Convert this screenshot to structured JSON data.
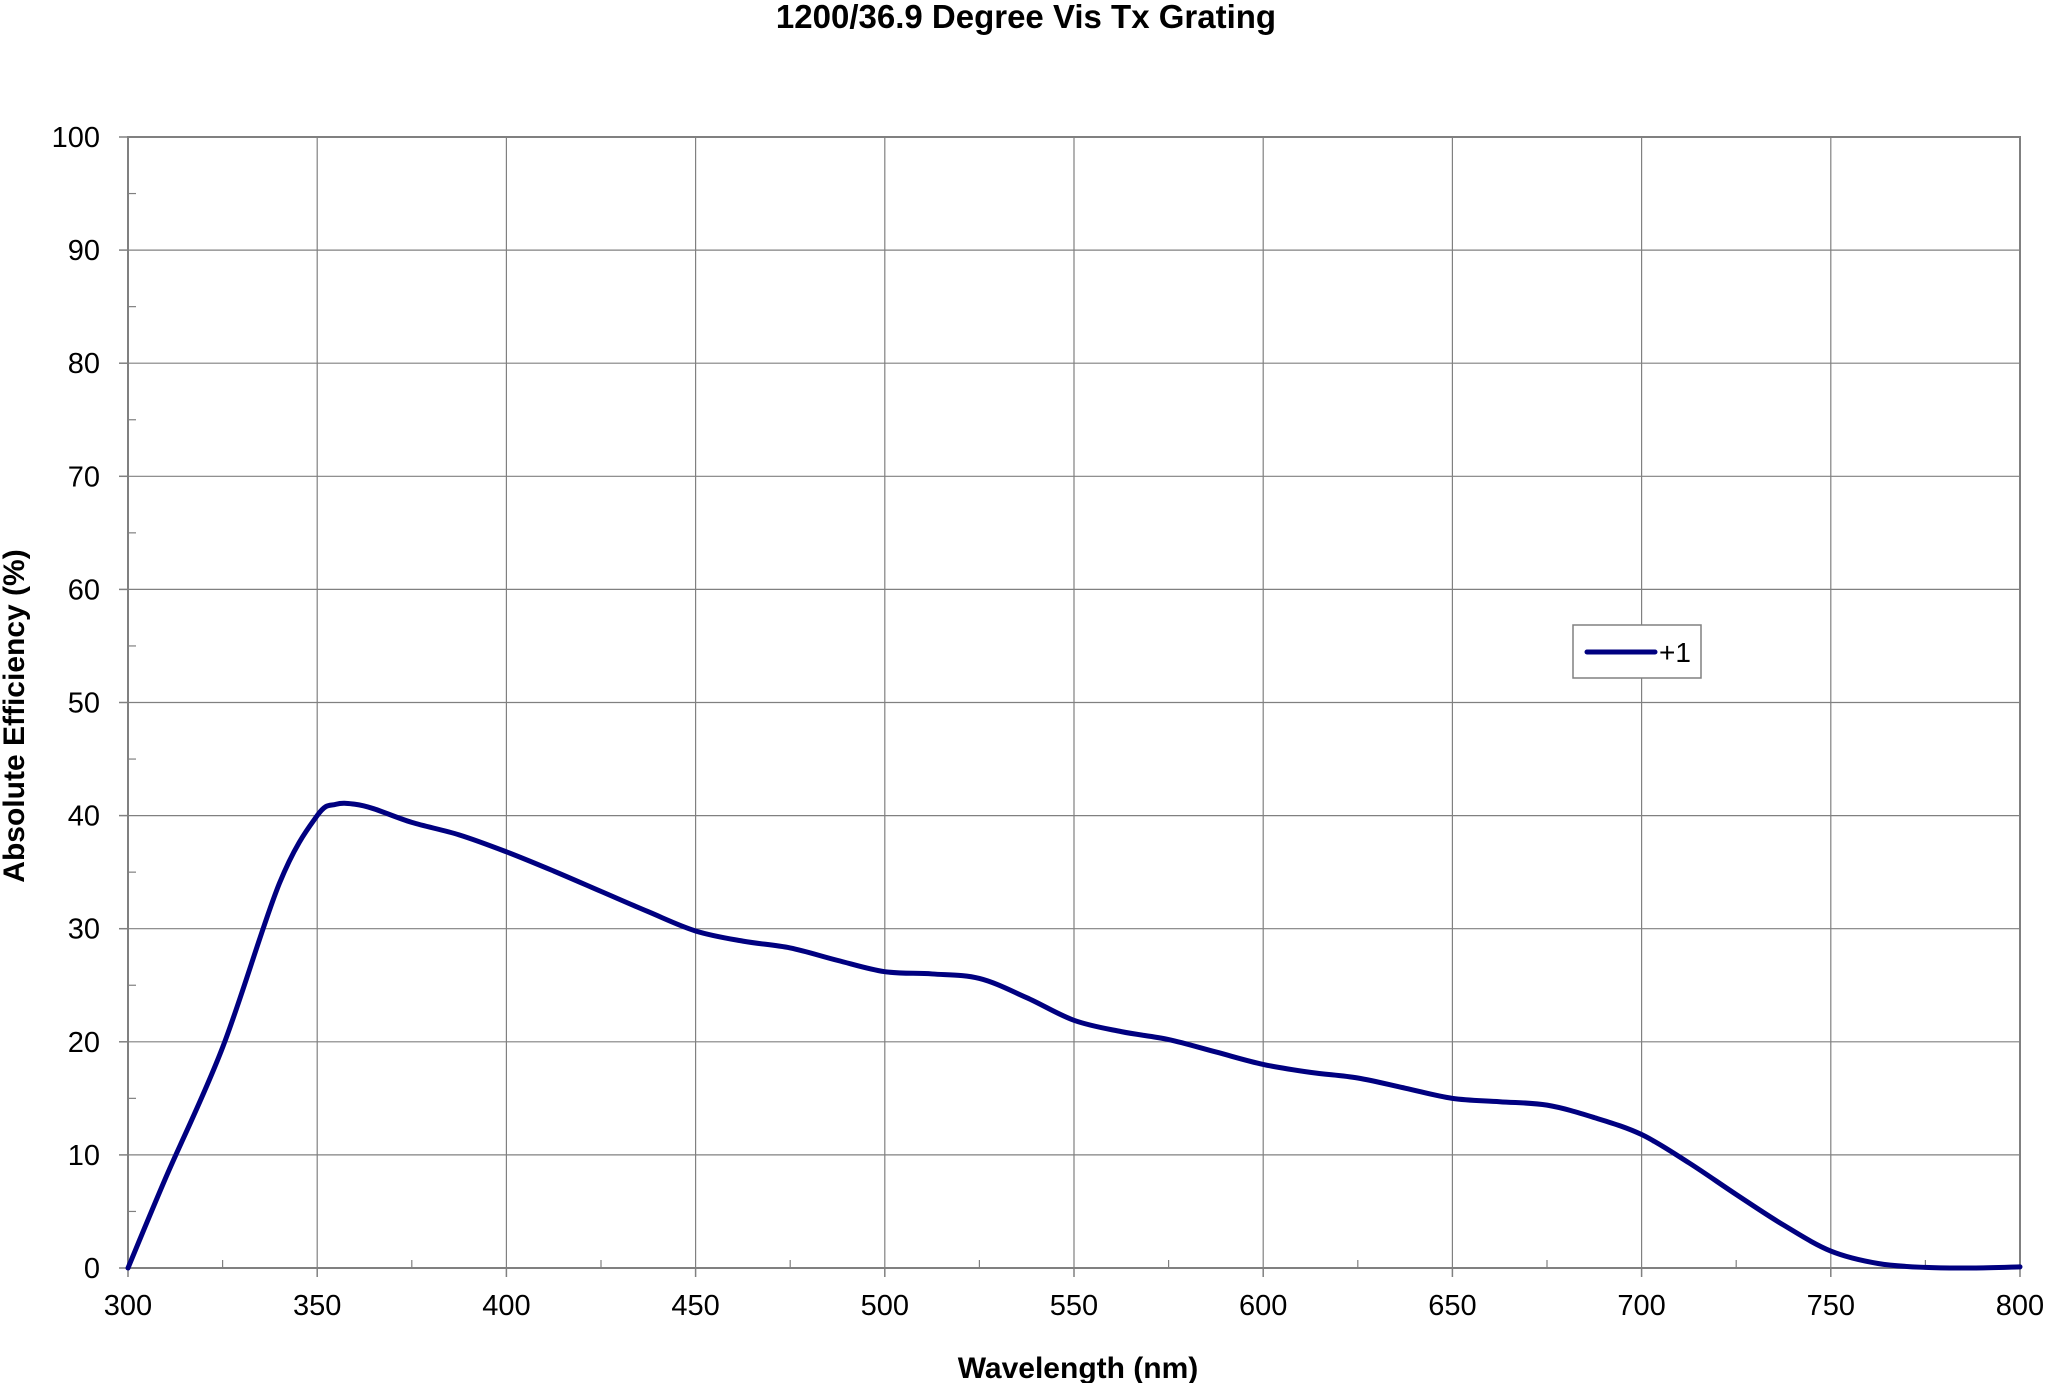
{
  "chart_data": {
    "type": "line",
    "title": "1200/36.9 Degree Vis Tx Grating",
    "xlabel": "Wavelength (nm)",
    "ylabel": "Absolute Efficiency (%)",
    "xlim": [
      300,
      800
    ],
    "ylim": [
      0,
      100
    ],
    "x_ticks": [
      "300",
      "350",
      "400",
      "450",
      "500",
      "550",
      "600",
      "650",
      "700",
      "750",
      "800"
    ],
    "y_ticks": [
      "0",
      "10",
      "20",
      "30",
      "40",
      "50",
      "60",
      "70",
      "80",
      "90",
      "100"
    ],
    "grid": true,
    "legend_position": "right",
    "series": [
      {
        "name": "+1",
        "color": "#000080",
        "x": [
          300,
          310,
          325,
          340,
          350,
          355,
          360,
          365,
          375,
          387.5,
          400,
          412.5,
          425,
          437.5,
          450,
          462.5,
          475,
          487.5,
          500,
          512.5,
          525,
          537.5,
          550,
          562.5,
          575,
          587.5,
          600,
          612.5,
          625,
          637.5,
          650,
          662.5,
          675,
          687.5,
          700,
          712.5,
          725,
          737.5,
          750,
          762.5,
          775,
          787.5,
          800
        ],
        "y": [
          0,
          8,
          19.5,
          34,
          40,
          41,
          41,
          40.6,
          39.4,
          38.3,
          36.8,
          35.1,
          33.3,
          31.5,
          29.8,
          28.9,
          28.3,
          27.2,
          26.2,
          26,
          25.6,
          23.9,
          21.9,
          20.9,
          20.2,
          19.1,
          18,
          17.3,
          16.8,
          15.9,
          15,
          14.7,
          14.4,
          13.3,
          11.8,
          9.3,
          6.5,
          3.8,
          1.5,
          0.4,
          0.05,
          0,
          0.1
        ]
      }
    ]
  }
}
